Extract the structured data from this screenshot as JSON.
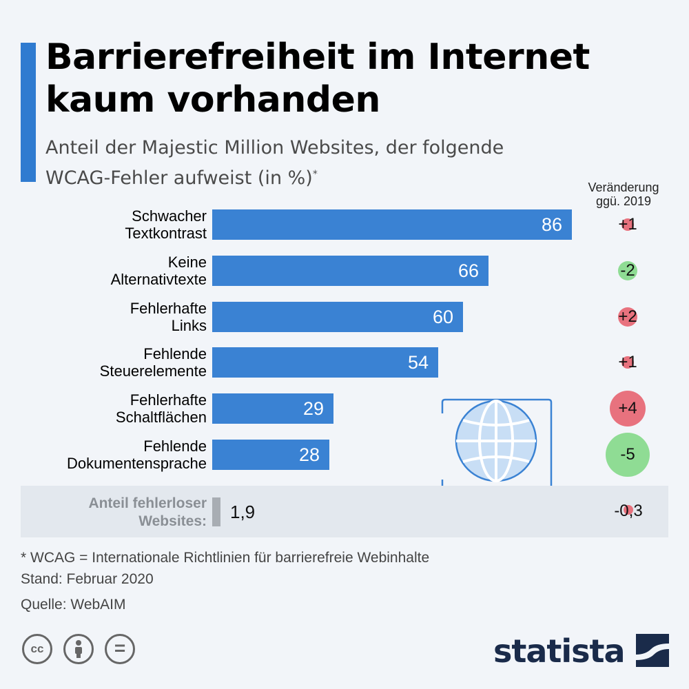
{
  "title_lines": [
    "Barrierefreiheit im Internet",
    "kaum vorhanden"
  ],
  "subtitle_lines": [
    "Anteil der Majestic Million Websites, der folgende",
    "WCAG-Fehler aufweist (in %)"
  ],
  "subtitle_marker": "*",
  "change_header_lines": [
    "Veränderung",
    "ggü. 2019"
  ],
  "colors": {
    "accent": "#2f7bd0",
    "bar": "#3a82d3",
    "increase": "#e8727e",
    "decrease": "#8fdc94",
    "errorless_bar": "#a8adb3"
  },
  "chart_data": {
    "type": "bar",
    "orientation": "horizontal",
    "title": "Barrierefreiheit im Internet kaum vorhanden",
    "subtitle": "Anteil der Majestic Million Websites, der folgende WCAG-Fehler aufweist (in %)*",
    "categories": [
      [
        "Schwacher",
        "Textkontrast"
      ],
      [
        "Keine",
        "Alternativtexte"
      ],
      [
        "Fehlerhafte",
        "Links"
      ],
      [
        "Fehlende",
        "Steuerelemente"
      ],
      [
        "Fehlerhafte",
        "Schaltflächen"
      ],
      [
        "Fehlende",
        "Dokumentensprache"
      ]
    ],
    "values": [
      86,
      66,
      60,
      54,
      29,
      28
    ],
    "value_labels": [
      "86",
      "66",
      "60",
      "54",
      "29",
      "28"
    ],
    "changes": [
      1,
      -2,
      2,
      1,
      4,
      -5
    ],
    "change_labels": [
      "+1",
      "-2",
      "+2",
      "+1",
      "+4",
      "-5"
    ],
    "xlim": [
      0,
      100
    ],
    "errorless": {
      "label_lines": [
        "Anteil fehlerloser",
        "Websites:"
      ],
      "value": 1.9,
      "value_label": "1,9",
      "change": -0.3,
      "change_label": "-0,3"
    }
  },
  "footnotes": [
    "* WCAG = Internationale Richtlinien für barrierefreie Webinhalte",
    "Stand: Februar 2020",
    "Quelle: WebAIM"
  ],
  "license_icons": [
    "creative-commons-icon",
    "attribution-icon",
    "no-derivatives-icon"
  ],
  "license_glyphs": [
    "cc",
    "",
    "="
  ],
  "brand": "statista"
}
